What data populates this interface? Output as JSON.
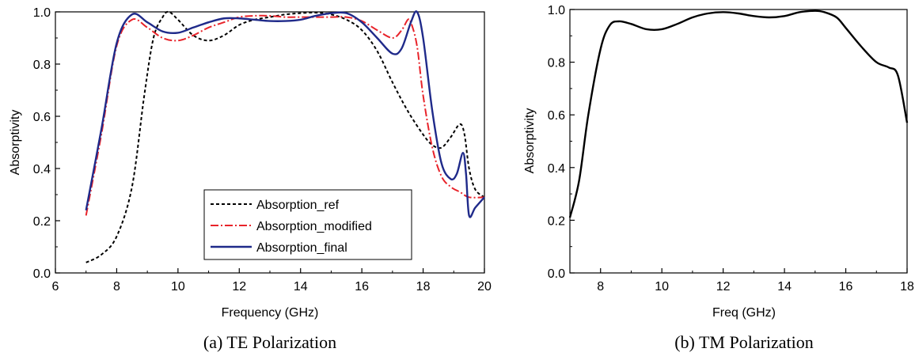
{
  "chart_data": [
    {
      "type": "line",
      "caption": "(a) TE Polarization",
      "xlabel": "Frequency (GHz)",
      "ylabel": "Absorptivity",
      "xlim": [
        6,
        20
      ],
      "ylim": [
        0.0,
        1.0
      ],
      "xticks": [
        "6",
        "8",
        "10",
        "12",
        "14",
        "16",
        "18",
        "20"
      ],
      "yticks": [
        "0.0",
        "0.2",
        "0.4",
        "0.6",
        "0.8",
        "1.0"
      ],
      "legend": "lower-center",
      "grid": false,
      "series": [
        {
          "name": "Absorption_ref",
          "color": "#000000",
          "style": "dashed",
          "points": [
            [
              7.0,
              0.04
            ],
            [
              7.5,
              0.07
            ],
            [
              8.0,
              0.14
            ],
            [
              8.5,
              0.33
            ],
            [
              8.9,
              0.68
            ],
            [
              9.2,
              0.9
            ],
            [
              9.5,
              0.98
            ],
            [
              9.7,
              1.0
            ],
            [
              10.0,
              0.97
            ],
            [
              10.5,
              0.91
            ],
            [
              11.0,
              0.89
            ],
            [
              11.5,
              0.91
            ],
            [
              12.0,
              0.95
            ],
            [
              12.5,
              0.97
            ],
            [
              13.0,
              0.98
            ],
            [
              13.5,
              0.99
            ],
            [
              14.0,
              0.995
            ],
            [
              14.5,
              0.997
            ],
            [
              15.0,
              0.99
            ],
            [
              15.5,
              0.97
            ],
            [
              16.0,
              0.93
            ],
            [
              16.5,
              0.85
            ],
            [
              17.0,
              0.73
            ],
            [
              17.5,
              0.62
            ],
            [
              18.0,
              0.53
            ],
            [
              18.3,
              0.49
            ],
            [
              18.6,
              0.48
            ],
            [
              18.9,
              0.52
            ],
            [
              19.2,
              0.57
            ],
            [
              19.35,
              0.53
            ],
            [
              19.5,
              0.4
            ],
            [
              19.7,
              0.32
            ],
            [
              20.0,
              0.29
            ]
          ]
        },
        {
          "name": "Absorption_modified",
          "color": "#e8232a",
          "style": "dashdot",
          "points": [
            [
              7.0,
              0.22
            ],
            [
              7.5,
              0.53
            ],
            [
              8.0,
              0.87
            ],
            [
              8.5,
              0.97
            ],
            [
              9.0,
              0.94
            ],
            [
              9.5,
              0.9
            ],
            [
              10.0,
              0.89
            ],
            [
              10.5,
              0.91
            ],
            [
              11.0,
              0.94
            ],
            [
              11.5,
              0.96
            ],
            [
              12.0,
              0.98
            ],
            [
              12.5,
              0.985
            ],
            [
              13.0,
              0.985
            ],
            [
              13.5,
              0.98
            ],
            [
              14.0,
              0.98
            ],
            [
              14.5,
              0.98
            ],
            [
              15.0,
              0.98
            ],
            [
              15.5,
              0.98
            ],
            [
              16.0,
              0.965
            ],
            [
              16.5,
              0.93
            ],
            [
              17.0,
              0.9
            ],
            [
              17.3,
              0.93
            ],
            [
              17.5,
              0.97
            ],
            [
              17.6,
              0.96
            ],
            [
              17.8,
              0.87
            ],
            [
              18.0,
              0.68
            ],
            [
              18.3,
              0.48
            ],
            [
              18.6,
              0.37
            ],
            [
              18.9,
              0.33
            ],
            [
              19.2,
              0.31
            ],
            [
              19.5,
              0.29
            ],
            [
              20.0,
              0.29
            ]
          ]
        },
        {
          "name": "Absorption_final",
          "color": "#1f2a8a",
          "style": "solid",
          "points": [
            [
              7.0,
              0.24
            ],
            [
              7.5,
              0.55
            ],
            [
              8.0,
              0.88
            ],
            [
              8.5,
              0.99
            ],
            [
              9.0,
              0.96
            ],
            [
              9.5,
              0.925
            ],
            [
              10.0,
              0.92
            ],
            [
              10.5,
              0.94
            ],
            [
              11.0,
              0.96
            ],
            [
              11.5,
              0.975
            ],
            [
              12.0,
              0.975
            ],
            [
              12.5,
              0.97
            ],
            [
              13.0,
              0.965
            ],
            [
              13.5,
              0.965
            ],
            [
              14.0,
              0.97
            ],
            [
              14.5,
              0.985
            ],
            [
              15.0,
              0.995
            ],
            [
              15.5,
              0.995
            ],
            [
              16.0,
              0.96
            ],
            [
              16.5,
              0.9
            ],
            [
              17.0,
              0.84
            ],
            [
              17.3,
              0.86
            ],
            [
              17.6,
              0.96
            ],
            [
              17.8,
              1.0
            ],
            [
              18.0,
              0.9
            ],
            [
              18.3,
              0.62
            ],
            [
              18.6,
              0.42
            ],
            [
              18.9,
              0.36
            ],
            [
              19.1,
              0.38
            ],
            [
              19.3,
              0.46
            ],
            [
              19.4,
              0.38
            ],
            [
              19.5,
              0.22
            ],
            [
              19.7,
              0.25
            ],
            [
              20.0,
              0.29
            ]
          ]
        }
      ]
    },
    {
      "type": "line",
      "caption": "(b) TM Polarization",
      "xlabel": "Freq (GHz)",
      "ylabel": "Absorptivity",
      "xlim": [
        7,
        18
      ],
      "ylim": [
        0.0,
        1.0
      ],
      "xticks": [
        "8",
        "10",
        "12",
        "14",
        "16",
        "18"
      ],
      "yticks": [
        "0.0",
        "0.2",
        "0.4",
        "0.6",
        "0.8",
        "1.0"
      ],
      "grid": false,
      "series": [
        {
          "color": "#000000",
          "style": "solid",
          "points": [
            [
              7.0,
              0.21
            ],
            [
              7.3,
              0.35
            ],
            [
              7.6,
              0.6
            ],
            [
              8.0,
              0.85
            ],
            [
              8.3,
              0.94
            ],
            [
              8.6,
              0.955
            ],
            [
              9.0,
              0.945
            ],
            [
              9.5,
              0.925
            ],
            [
              10.0,
              0.925
            ],
            [
              10.5,
              0.945
            ],
            [
              11.0,
              0.97
            ],
            [
              11.5,
              0.985
            ],
            [
              12.0,
              0.99
            ],
            [
              12.5,
              0.985
            ],
            [
              13.0,
              0.975
            ],
            [
              13.5,
              0.97
            ],
            [
              14.0,
              0.975
            ],
            [
              14.5,
              0.99
            ],
            [
              15.0,
              0.995
            ],
            [
              15.3,
              0.99
            ],
            [
              15.7,
              0.97
            ],
            [
              16.0,
              0.93
            ],
            [
              16.5,
              0.86
            ],
            [
              17.0,
              0.8
            ],
            [
              17.4,
              0.78
            ],
            [
              17.7,
              0.75
            ],
            [
              18.0,
              0.57
            ]
          ]
        }
      ]
    }
  ]
}
